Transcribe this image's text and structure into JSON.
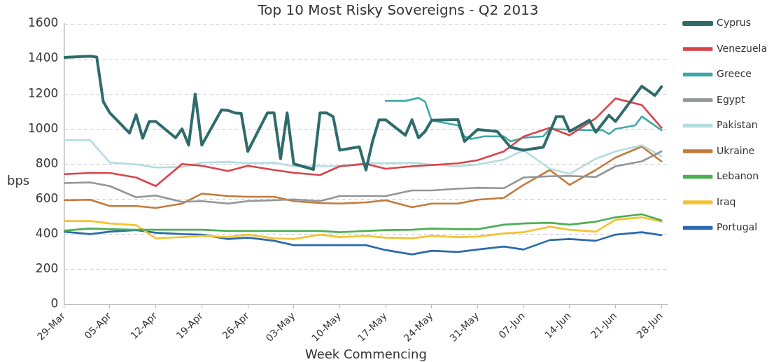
{
  "chart_data": {
    "type": "line",
    "title": "Top 10 Most Risky Sovereigns - Q2 2013",
    "xlabel": "Week Commencing",
    "ylabel": "bps",
    "x": [
      "--03-29",
      "--04-02",
      "--04-05",
      "--04-09",
      "--04-12",
      "--04-16",
      "--04-19",
      "--04-23",
      "--04-26",
      "--04-30",
      "--05-03",
      "--05-07",
      "--05-10",
      "--05-14",
      "--05-17",
      "--05-21",
      "--05-24",
      "--05-28",
      "--05-31",
      "--06-04",
      "--06-07",
      "--06-11",
      "--06-14",
      "--06-18",
      "--06-21",
      "--06-25",
      "--06-28"
    ],
    "series": [
      {
        "name": "Cyprus",
        "color": "#2f6b6b",
        "x": [
          "--03-29",
          "--04-02",
          "--04-03",
          "--04-04",
          "--04-05",
          "--04-08",
          "--04-09",
          "--04-10",
          "--04-11",
          "--04-12",
          "--04-15",
          "--04-16",
          "--04-17",
          "--04-18",
          "--04-19",
          "--04-22",
          "--04-23",
          "--04-24",
          "--04-25",
          "--04-26",
          "--04-29",
          "--04-30",
          "--05-01",
          "--05-02",
          "--05-03",
          "--05-06",
          "--05-07",
          "--05-08",
          "--05-09",
          "--05-10",
          "--05-13",
          "--05-14",
          "--05-15",
          "--05-16",
          "--05-17",
          "--05-20",
          "--05-21",
          "--05-22",
          "--05-23",
          "--05-24",
          "--05-28",
          "--05-29",
          "--05-31",
          "--06-03",
          "--06-05",
          "--06-07",
          "--06-10",
          "--06-12",
          "--06-13",
          "--06-14",
          "--06-17",
          "--06-18",
          "--06-20",
          "--06-21",
          "--06-25",
          "--06-27",
          "--06-28"
        ],
        "values": [
          1408,
          1415,
          1410,
          1156,
          1092,
          976,
          1081,
          947,
          1043,
          1043,
          950,
          1000,
          908,
          1199,
          908,
          1109,
          1106,
          1092,
          1089,
          872,
          1092,
          1092,
          830,
          1092,
          801,
          769,
          1092,
          1092,
          1071,
          879,
          898,
          766,
          929,
          1052,
          1052,
          964,
          1052,
          950,
          986,
          1050,
          1054,
          929,
          997,
          986,
          896,
          879,
          896,
          1071,
          1071,
          986,
          1050,
          982,
          1078,
          1043,
          1244,
          1191,
          1241
        ]
      },
      {
        "name": "Venezuela",
        "color": "#d9434b",
        "values": [
          742,
          749,
          749,
          723,
          674,
          800,
          790,
          760,
          790,
          766,
          750,
          737,
          787,
          801,
          773,
          787,
          794,
          804,
          822,
          872,
          957,
          1007,
          964,
          1061,
          1174,
          1137,
          1007
        ]
      },
      {
        "name": "Greece",
        "color": "#3fa9a7",
        "x": [
          "--05-17",
          "--05-20",
          "--05-22",
          "--05-23",
          "--05-24",
          "--05-28",
          "--05-29",
          "--05-30",
          "--06-01",
          "--06-04",
          "--06-05",
          "--06-07",
          "--06-10",
          "--06-11",
          "--06-17",
          "--06-19",
          "--06-20",
          "--06-21",
          "--06-24",
          "--06-25",
          "--06-28"
        ],
        "values": [
          1160,
          1160,
          1177,
          1156,
          1049,
          1021,
          958,
          943,
          958,
          958,
          929,
          950,
          958,
          1000,
          993,
          993,
          971,
          1000,
          1021,
          1071,
          993
        ]
      },
      {
        "name": "Egypt",
        "color": "#939598",
        "values": [
          691,
          695,
          674,
          610,
          620,
          584,
          588,
          574,
          588,
          593,
          598,
          588,
          617,
          617,
          617,
          649,
          649,
          659,
          664,
          662,
          723,
          730,
          732,
          726,
          787,
          815,
          872
        ]
      },
      {
        "name": "Pakistan",
        "color": "#b3dcde",
        "values": [
          936,
          936,
          808,
          798,
          780,
          783,
          808,
          812,
          805,
          808,
          787,
          787,
          787,
          805,
          805,
          808,
          797,
          787,
          797,
          825,
          879,
          773,
          744,
          830,
          872,
          907,
          844
        ]
      },
      {
        "name": "Ukraine",
        "color": "#c47a3a",
        "values": [
          593,
          596,
          560,
          560,
          549,
          574,
          631,
          617,
          613,
          613,
          588,
          577,
          574,
          581,
          593,
          553,
          574,
          574,
          596,
          607,
          681,
          766,
          681,
          766,
          837,
          900,
          815
        ]
      },
      {
        "name": "Lebanon",
        "color": "#4caf50",
        "values": [
          420,
          432,
          428,
          425,
          425,
          425,
          425,
          418,
          418,
          418,
          418,
          418,
          411,
          418,
          423,
          425,
          432,
          428,
          428,
          454,
          461,
          465,
          454,
          471,
          496,
          513,
          478
        ]
      },
      {
        "name": "Iraq",
        "color": "#f5c231",
        "values": [
          475,
          475,
          461,
          451,
          376,
          383,
          390,
          383,
          397,
          376,
          372,
          397,
          383,
          390,
          380,
          376,
          390,
          383,
          386,
          404,
          411,
          442,
          425,
          414,
          482,
          496,
          471
        ]
      },
      {
        "name": "Portugal",
        "color": "#2b6aad",
        "values": [
          414,
          400,
          414,
          423,
          408,
          400,
          397,
          372,
          380,
          362,
          337,
          337,
          337,
          337,
          309,
          284,
          305,
          298,
          312,
          329,
          312,
          366,
          372,
          362,
          397,
          411,
          394
        ]
      }
    ],
    "xlim": [
      "--03-29",
      "--06-29"
    ],
    "xticks": [
      {
        "value": "--03-29",
        "label": "29-Mar"
      },
      {
        "value": "--04-05",
        "label": "05-Apr"
      },
      {
        "value": "--04-12",
        "label": "12-Apr"
      },
      {
        "value": "--04-19",
        "label": "19-Apr"
      },
      {
        "value": "--04-26",
        "label": "26-Apr"
      },
      {
        "value": "--05-03",
        "label": "03-May"
      },
      {
        "value": "--05-10",
        "label": "10-May"
      },
      {
        "value": "--05-17",
        "label": "17-May"
      },
      {
        "value": "--05-24",
        "label": "24-May"
      },
      {
        "value": "--05-31",
        "label": "31-May"
      },
      {
        "value": "--06-07",
        "label": "07-Jun"
      },
      {
        "value": "--06-14",
        "label": "14-Jun"
      },
      {
        "value": "--06-21",
        "label": "21-Jun"
      },
      {
        "value": "--06-28",
        "label": "28-Jun"
      }
    ],
    "ylim": [
      0,
      1600
    ],
    "yticks": [
      0,
      200,
      400,
      600,
      800,
      1000,
      1200,
      1400,
      1600
    ],
    "grid": "y",
    "legend": "right",
    "marker": "none",
    "line_style": "solid"
  }
}
